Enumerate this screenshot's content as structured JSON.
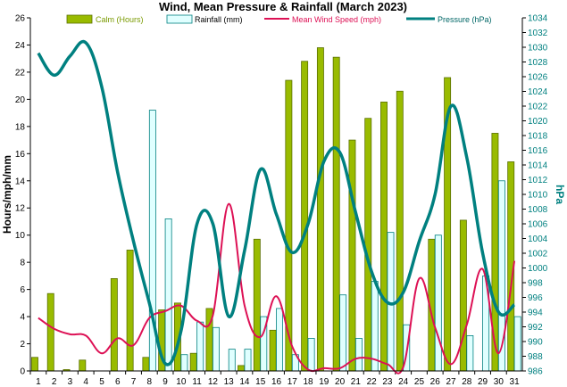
{
  "chart_data": {
    "type": "bar",
    "title": "Wind, Mean Pressure & Rainfall (March 2023)",
    "ylabel": "Hours/mph/mm",
    "y2label": "hPa",
    "categories": [
      "1",
      "2",
      "3",
      "4",
      "5",
      "6",
      "7",
      "8",
      "9",
      "10",
      "11",
      "12",
      "13",
      "14",
      "15",
      "16",
      "17",
      "18",
      "19",
      "20",
      "21",
      "22",
      "23",
      "24",
      "25",
      "26",
      "27",
      "28",
      "29",
      "30",
      "31"
    ],
    "ylim": [
      0,
      26
    ],
    "y_ticks": [
      "0",
      "2",
      "4",
      "6",
      "8",
      "10",
      "12",
      "14",
      "16",
      "18",
      "20",
      "22",
      "24",
      "26"
    ],
    "y2lim": [
      986,
      1034
    ],
    "y2_ticks": [
      "986",
      "988",
      "990",
      "992",
      "994",
      "996",
      "998",
      "1000",
      "1002",
      "1004",
      "1006",
      "1008",
      "1010",
      "1012",
      "1014",
      "1016",
      "1018",
      "1020",
      "1022",
      "1024",
      "1026",
      "1028",
      "1030",
      "1032",
      "1034"
    ],
    "legend_position": "top",
    "grid": false,
    "series": [
      {
        "name": "Calm (Hours)",
        "kind": "bar",
        "color": "#99bb00",
        "values": [
          1.0,
          5.7,
          0.1,
          0.8,
          0,
          6.8,
          8.9,
          1.0,
          4.5,
          5.0,
          1.3,
          4.6,
          0,
          0.4,
          9.7,
          3.0,
          21.4,
          22.8,
          23.8,
          23.1,
          17.0,
          18.6,
          19.8,
          20.6,
          0,
          9.7,
          21.6,
          11.1,
          0,
          17.5,
          15.4
        ]
      },
      {
        "name": "Rainfall (mm)",
        "kind": "bar",
        "color": "#e0ffff",
        "values": [
          0,
          0,
          0,
          0,
          0,
          0,
          0,
          19.2,
          11.2,
          1.2,
          3.6,
          3.2,
          1.6,
          1.6,
          4.0,
          4.6,
          1.2,
          2.4,
          0,
          5.6,
          2.4,
          6.6,
          10.2,
          3.4,
          0,
          10.0,
          0,
          2.6,
          7.0,
          14.0,
          4.0
        ]
      },
      {
        "name": "Mean Wind Speed (mph)",
        "kind": "line",
        "color": "#dd1155",
        "values": [
          3.9,
          3.1,
          2.7,
          2.6,
          1.3,
          2.4,
          1.9,
          3.9,
          4.4,
          4.8,
          3.7,
          4.1,
          12.3,
          4.8,
          2.5,
          5.5,
          1.8,
          0.1,
          0.2,
          0.2,
          0.9,
          0.9,
          0.5,
          0.3,
          6.8,
          3.2,
          0.5,
          3.4,
          7.5,
          1.3,
          8.1
        ]
      },
      {
        "name": "Pressure (hPa)",
        "kind": "line",
        "axis": "right",
        "color": "#008080",
        "values": [
          1029.2,
          1026.2,
          1028.8,
          1030.6,
          1024.6,
          1013.0,
          1003.6,
          995.2,
          987.0,
          991.5,
          1006.0,
          1006.0,
          993.4,
          1002.4,
          1013.4,
          1007.3,
          1002.1,
          1006.0,
          1014.5,
          1015.7,
          1007.5,
          999.5,
          995.3,
          996.7,
          1003.6,
          1010.0,
          1022.0,
          1015.0,
          1002.0,
          994.0,
          995.0
        ]
      }
    ]
  }
}
